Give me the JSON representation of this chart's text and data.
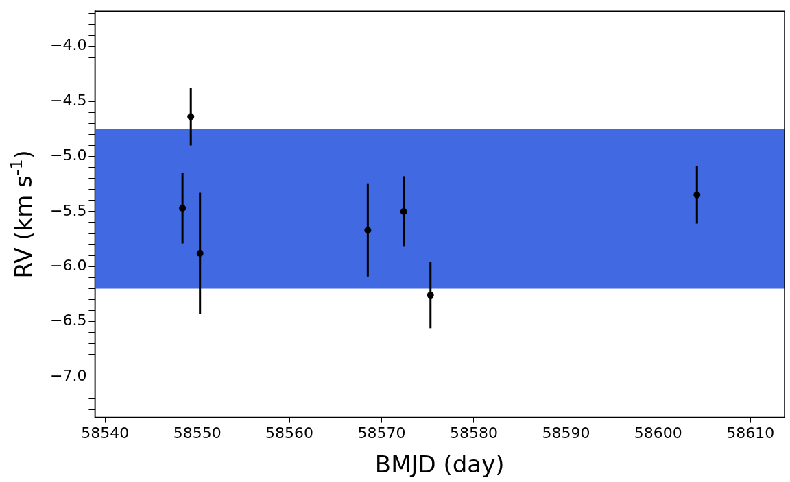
{
  "chart_data": {
    "type": "scatter",
    "xlabel": "BMJD (day)",
    "ylabel": "RV (km s$^{-1}$)",
    "x": [
      58548.4,
      58549.3,
      58550.3,
      58568.5,
      58572.4,
      58575.3,
      58604.2
    ],
    "series": [
      {
        "color": "#000000",
        "values": [
          -5.47,
          -4.64,
          -5.88,
          -5.67,
          -5.5,
          -6.26,
          -5.35
        ],
        "errors": [
          0.32,
          0.26,
          0.55,
          0.42,
          0.32,
          0.3,
          0.26
        ]
      }
    ],
    "marker": "circle",
    "grid": false,
    "legend": false,
    "xlim": [
      58538.9,
      58613.7
    ],
    "ylim": [
      -7.37,
      -3.68
    ],
    "xticks": [
      58540,
      58550,
      58560,
      58570,
      58580,
      58590,
      58600,
      58610
    ],
    "yticks": [
      {
        "value": -4.0,
        "label": "−4.0"
      },
      {
        "value": -4.5,
        "label": "−4.5"
      },
      {
        "value": -5.0,
        "label": "−5.0"
      },
      {
        "value": -5.5,
        "label": "−5.5"
      },
      {
        "value": -6.0,
        "label": "−6.0"
      },
      {
        "value": -6.5,
        "label": "−6.5"
      },
      {
        "value": -7.0,
        "label": "−7.0"
      },
      {
        "value": -3.7,
        "label": null
      },
      {
        "value": -3.8,
        "label": null
      },
      {
        "value": -3.9,
        "label": null
      },
      {
        "value": -4.1,
        "label": null
      },
      {
        "value": -4.2,
        "label": null
      },
      {
        "value": -4.3,
        "label": null
      },
      {
        "value": -4.4,
        "label": null
      },
      {
        "value": -4.6,
        "label": null
      },
      {
        "value": -4.7,
        "label": null
      },
      {
        "value": -4.8,
        "label": null
      },
      {
        "value": -4.9,
        "label": null
      },
      {
        "value": -5.1,
        "label": null
      },
      {
        "value": -5.2,
        "label": null
      },
      {
        "value": -5.3,
        "label": null
      },
      {
        "value": -5.4,
        "label": null
      },
      {
        "value": -5.6,
        "label": null
      },
      {
        "value": -5.7,
        "label": null
      },
      {
        "value": -5.8,
        "label": null
      },
      {
        "value": -5.9,
        "label": null
      },
      {
        "value": -6.1,
        "label": null
      },
      {
        "value": -6.2,
        "label": null
      },
      {
        "value": -6.3,
        "label": null
      },
      {
        "value": -6.4,
        "label": null
      },
      {
        "value": -6.6,
        "label": null
      },
      {
        "value": -6.7,
        "label": null
      },
      {
        "value": -6.8,
        "label": null
      },
      {
        "value": -6.9,
        "label": null
      },
      {
        "value": -7.1,
        "label": null
      },
      {
        "value": -7.2,
        "label": null
      },
      {
        "value": -7.3,
        "label": null
      }
    ],
    "bands": [
      {
        "axis": "y",
        "from": -6.2,
        "to": -4.75,
        "color": "#4169e1"
      }
    ]
  }
}
